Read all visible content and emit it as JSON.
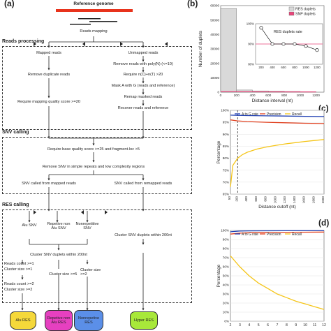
{
  "panel_labels": {
    "a": "(a)",
    "b": "(b)",
    "c": "(c)",
    "d": "(d)"
  },
  "flow": {
    "reference_genome": "Reference genome",
    "reads_mapping": "Reads mapping",
    "reads_processing": {
      "heading": "Reads processing",
      "mapped_reads": "Mapped reads",
      "unmapped_reads": "Unmapped reads",
      "remove_duplicate": "Remove  duplicate reads",
      "remove_polyN": "Remove reads with poly(N) (<=10)",
      "require_nC_nT": "Require n(C)+n(T) >20",
      "mask_a_g": "Mask A with G (reads and reference)",
      "remap_masked": "Remap masked reads",
      "recover_reads": "Recover reads and reference",
      "mapping_quality": "Require mapping quality score >=20"
    },
    "snv_calling": {
      "heading": "SNV calling",
      "base_quality": "Require base quality score >=25 and fragment-loc >5",
      "remove_snv": "Remove SNV in simple repeats and low complexity regions",
      "snv_mapped": "SNV called from mapped reads",
      "snv_remapped": "SNV called from remapped reads"
    },
    "res_calling": {
      "heading": "RES calling",
      "alu_snv": "Alu SNV",
      "rep_non_alu_snv": "Repetive non Alu SNV",
      "nonrepetitive_snv": "Nonrepetitive SNV",
      "cluster_200_left": "Cluster SNV duplets within 200nt",
      "cluster_200_right": "Cluster SNV duplets within 200nt",
      "reads_count_1": "Reads count >=1",
      "cluster_size_1": "Cluster size >=1",
      "reads_count_2": "Reads count >=2",
      "cluster_size_2": "Cluster size >=2",
      "cluster_size_5": "Cluster size >=5",
      "cluster_size_2b": "Cluster size >=2"
    },
    "outputs": {
      "alu_res": "Alu RES",
      "rep_non_alu_res": "Repetive non Alu RES",
      "nonrep_res": "Nonrepetive RES",
      "hyper_res": "Hyper RES"
    },
    "output_colors": {
      "alu": "#f5d83a",
      "rep": "#e640c0",
      "nonrep": "#5b8fe8",
      "hyper": "#a8e83a"
    }
  },
  "chart_data": [
    {
      "type": "bar",
      "panel": "b",
      "xlabel": "Distance interval (nt)",
      "ylabel": "Number of duplets",
      "ylim": [
        0,
        60000
      ],
      "yticks": [
        0,
        10000,
        20000,
        30000,
        40000,
        50000,
        60000
      ],
      "xticks": [
        0,
        200,
        400,
        600,
        800,
        1000,
        1200
      ],
      "legend": [
        "RES duplets",
        "SNP duplets"
      ],
      "legend_colors": [
        "#d9d9d9",
        "#e8457a"
      ],
      "series": [
        {
          "name": "RES duplets",
          "x": [
            100,
            300,
            500,
            700,
            900,
            1100
          ],
          "values": [
            58000,
            1500,
            900,
            700,
            500,
            400
          ]
        },
        {
          "name": "SNP duplets",
          "x": [
            100,
            300,
            500,
            700,
            900,
            1100
          ],
          "values": [
            300,
            200,
            150,
            120,
            100,
            90
          ]
        }
      ],
      "inset": {
        "title": "RES duplets rate",
        "ylim": [
          80,
          100
        ],
        "yticks": [
          "80%",
          "90%",
          "100%"
        ],
        "xticks": [
          200,
          400,
          600,
          800,
          1000,
          1200
        ],
        "x": [
          200,
          400,
          600,
          800,
          1000,
          1200
        ],
        "y": [
          98,
          90,
          90,
          90,
          89,
          87
        ]
      }
    },
    {
      "type": "line",
      "panel": "c",
      "xlabel": "Distance cutoff (nt)",
      "ylabel": "Percentage",
      "ylim": [
        65,
        100
      ],
      "yticks": [
        "65%",
        "70%",
        "75%",
        "80%",
        "85%",
        "90%",
        "95%",
        "100%"
      ],
      "xticks": [
        50,
        200,
        400,
        600,
        800,
        1000,
        1200,
        1400,
        1600,
        1800,
        2000
      ],
      "cutoff": 200,
      "series": [
        {
          "name": "A to G rate",
          "color": "#1f3fb3",
          "x": [
            50,
            200,
            400,
            800,
            1200,
            1600,
            2000
          ],
          "values": [
            98,
            97.9,
            97.8,
            97.7,
            97.6,
            97.5,
            97.4
          ]
        },
        {
          "name": "Precision",
          "color": "#e0401f",
          "x": [
            50,
            200,
            400,
            800,
            1200,
            1600,
            2000
          ],
          "values": [
            96,
            95.6,
            95.3,
            95,
            94.8,
            94.6,
            94.5
          ]
        },
        {
          "name": "Recall",
          "color": "#f5c518",
          "x": [
            50,
            100,
            200,
            300,
            400,
            600,
            800,
            1000,
            1200,
            1400,
            1600,
            1800,
            2000
          ],
          "values": [
            68,
            77,
            80,
            81.5,
            82.5,
            83.8,
            84.7,
            85.4,
            86,
            86.5,
            87,
            87.4,
            87.8
          ]
        }
      ]
    },
    {
      "type": "line",
      "panel": "d",
      "xlabel": "",
      "ylabel": "Percentage",
      "ylim": [
        0,
        100
      ],
      "yticks": [
        "0%",
        "10%",
        "20%",
        "30%",
        "40%",
        "50%",
        "60%",
        "70%",
        "80%",
        "90%",
        "100%"
      ],
      "xticks": [
        2,
        3,
        4,
        5,
        6,
        7,
        8,
        9,
        10,
        11,
        12
      ],
      "series": [
        {
          "name": "A to G rate",
          "color": "#1f3fb3",
          "x": [
            2,
            3,
            4,
            6,
            8,
            10,
            12
          ],
          "values": [
            98.5,
            99.3,
            99.5,
            99.6,
            99.7,
            99.7,
            99.7
          ]
        },
        {
          "name": "Precision",
          "color": "#e0401f",
          "x": [
            2,
            3,
            4,
            6,
            8,
            10,
            12
          ],
          "values": [
            96,
            97,
            97.5,
            97.8,
            98,
            98.1,
            98.2
          ]
        },
        {
          "name": "Recall",
          "color": "#f5c518",
          "x": [
            2,
            3,
            4,
            5,
            6,
            7,
            8,
            9,
            10,
            11,
            12
          ],
          "values": [
            72,
            60,
            50,
            42,
            36,
            30,
            26,
            22,
            19,
            16,
            13
          ]
        }
      ]
    }
  ]
}
